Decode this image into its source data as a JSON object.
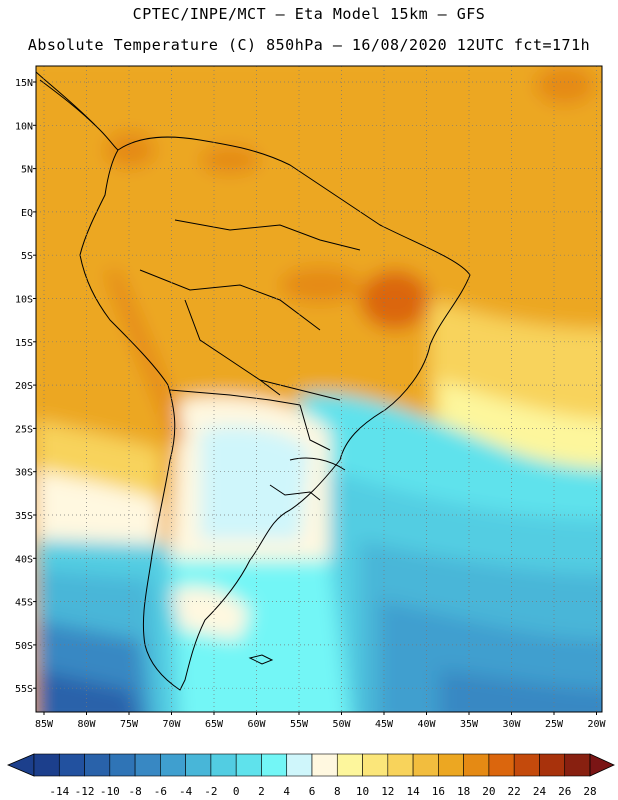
{
  "header": {
    "line1": "CPTEC/INPE/MCT –  Eta Model 15km – GFS",
    "line2": "Absolute Temperature (C) 850hPa – 16/08/2020 12UTC fct=171h"
  },
  "map": {
    "lat_labels": [
      "15N",
      "10N",
      "5N",
      "EQ",
      "5S",
      "10S",
      "15S",
      "20S",
      "25S",
      "30S",
      "35S",
      "40S",
      "45S",
      "50S",
      "55S"
    ],
    "lon_labels": [
      "85W",
      "80W",
      "75W",
      "70W",
      "65W",
      "60W",
      "55W",
      "50W",
      "45W",
      "40W",
      "35W",
      "30W",
      "25W",
      "20W"
    ],
    "lat_range": [
      15,
      -57
    ],
    "lon_range": [
      -85,
      -20
    ],
    "grid": "dotted"
  },
  "colorbar": {
    "labels": [
      "-14",
      "-12",
      "-10",
      "-8",
      "-6",
      "-4",
      "-2",
      "0",
      "2",
      "4",
      "6",
      "8",
      "10",
      "12",
      "14",
      "16",
      "18",
      "20",
      "22",
      "24",
      "26",
      "28"
    ],
    "colors": [
      "#1c3f8c",
      "#22519f",
      "#2962aa",
      "#2f74b6",
      "#3888c3",
      "#3f9fcf",
      "#48b6d8",
      "#52cde2",
      "#5fe2ec",
      "#73f6f6",
      "#cff6fb",
      "#fff8e0",
      "#fdf69c",
      "#fbe67a",
      "#f8d35b",
      "#f2bd3e",
      "#eca722",
      "#e58a14",
      "#db660d",
      "#c44a0c",
      "#a8320c",
      "#882010"
    ]
  }
}
